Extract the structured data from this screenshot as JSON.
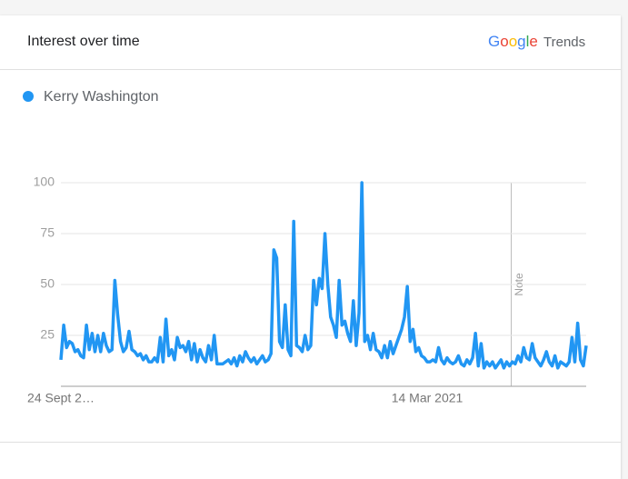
{
  "header": {
    "title": "Interest over time",
    "logo": "Google",
    "logo_suffix": "Trends"
  },
  "chart_data": {
    "type": "line",
    "categories": [
      "24 Sept 2…",
      null,
      null,
      null,
      null,
      null,
      null,
      null,
      null,
      null,
      null,
      null,
      null,
      null,
      null,
      null,
      null,
      null,
      null,
      null,
      null,
      null,
      null,
      null,
      null,
      null,
      null,
      null,
      null,
      null,
      null,
      null,
      null,
      null,
      null,
      null,
      null,
      null,
      null,
      null,
      null,
      null,
      null,
      null,
      null,
      null,
      null,
      null,
      null,
      null,
      null,
      null,
      null,
      null,
      null,
      null,
      null,
      null,
      null,
      null,
      null,
      null,
      null,
      null,
      null,
      null,
      null,
      null,
      null,
      null,
      null,
      null,
      null,
      null,
      null,
      null,
      null,
      null,
      null,
      null,
      null,
      null,
      null,
      null,
      null,
      null,
      null,
      null,
      null,
      null,
      null,
      null,
      null,
      null,
      null,
      null,
      null,
      null,
      null,
      null,
      null,
      null,
      null,
      null,
      null,
      null,
      null,
      null,
      null,
      null,
      null,
      null,
      null,
      null,
      null,
      null,
      null,
      null,
      null,
      null,
      null,
      null,
      null,
      null,
      null,
      null,
      null,
      null,
      null,
      "14 Mar 2021",
      null,
      null,
      null,
      null,
      null,
      null,
      null,
      null,
      null,
      null,
      null,
      null,
      null,
      null,
      null,
      null,
      null,
      null,
      null,
      null,
      null,
      null,
      null,
      null,
      null,
      null,
      null,
      null,
      null,
      null,
      null,
      null,
      null,
      null,
      null,
      null,
      null,
      null,
      null,
      null,
      null,
      null,
      null,
      null,
      null,
      null,
      null,
      null,
      null,
      null,
      null,
      null,
      null,
      null,
      null,
      null
    ],
    "series": [
      {
        "name": "Kerry Washington",
        "color": "#2196f3",
        "values": [
          13,
          30,
          19,
          22,
          21,
          17,
          18,
          15,
          14,
          30,
          18,
          26,
          17,
          25,
          17,
          26,
          20,
          17,
          18,
          52,
          35,
          22,
          17,
          19,
          27,
          18,
          17,
          15,
          16,
          13,
          15,
          12,
          12,
          14,
          12,
          24,
          12,
          33,
          15,
          18,
          13,
          24,
          19,
          20,
          17,
          22,
          13,
          21,
          12,
          18,
          14,
          12,
          20,
          13,
          25,
          11,
          11,
          11,
          12,
          13,
          11,
          14,
          10,
          15,
          12,
          17,
          14,
          12,
          14,
          11,
          13,
          15,
          12,
          13,
          16,
          67,
          63,
          22,
          19,
          40,
          18,
          15,
          81,
          20,
          19,
          17,
          25,
          18,
          20,
          52,
          40,
          53,
          48,
          75,
          50,
          34,
          30,
          24,
          52,
          30,
          32,
          26,
          22,
          42,
          20,
          36,
          100,
          22,
          25,
          18,
          26,
          18,
          17,
          14,
          20,
          14,
          22,
          16,
          20,
          24,
          28,
          34,
          49,
          22,
          28,
          17,
          19,
          15,
          14,
          12,
          12,
          13,
          12,
          19,
          13,
          11,
          14,
          12,
          11,
          12,
          15,
          11,
          10,
          13,
          11,
          14,
          26,
          10,
          21,
          9,
          12,
          10,
          12,
          9,
          11,
          13,
          9,
          12,
          10,
          12,
          11,
          15,
          12,
          19,
          14,
          13,
          21,
          14,
          12,
          10,
          13,
          17,
          12,
          10,
          15,
          9,
          12,
          11,
          10,
          12,
          24,
          12,
          31,
          13,
          10,
          20
        ]
      }
    ],
    "ylim": [
      0,
      100
    ],
    "yticks": [
      25,
      50,
      75,
      100
    ],
    "grid": true,
    "annotation": "Note"
  }
}
